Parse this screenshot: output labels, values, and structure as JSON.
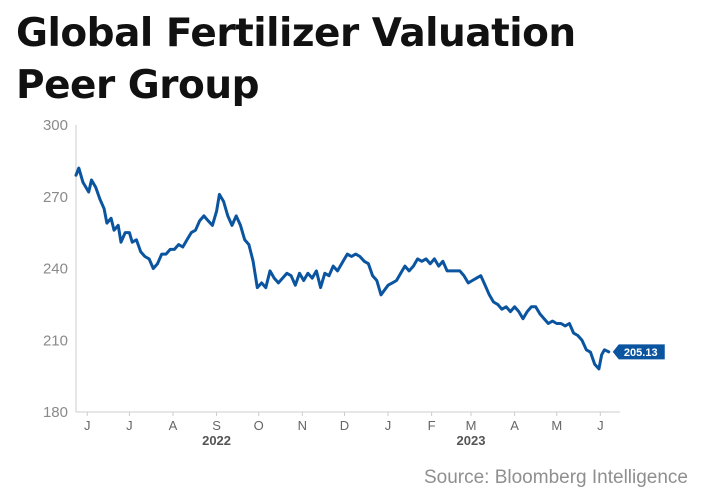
{
  "title_line1": "Global Fertilizer Valuation",
  "title_line2": "Peer Group",
  "source": "Source: Bloomberg Intelligence",
  "colors": {
    "line": "#0b55a0",
    "axis": "#cccccc",
    "label_bg": "#0b55a0",
    "label_text": "#ffffff"
  },
  "chart_data": {
    "type": "line",
    "title": "Global Fertilizer Valuation Peer Group",
    "xlabel": "",
    "ylabel": "",
    "ylim": [
      180,
      300
    ],
    "yticks": [
      180,
      210,
      240,
      270,
      300
    ],
    "grid": false,
    "legend": "none",
    "x_tick_labels": [
      {
        "label": "J",
        "date": "2022-06-01"
      },
      {
        "label": "J",
        "date": "2022-07-01"
      },
      {
        "label": "A",
        "date": "2022-08-01"
      },
      {
        "label": "S",
        "date": "2022-09-01"
      },
      {
        "label": "O",
        "date": "2022-10-01"
      },
      {
        "label": "N",
        "date": "2022-11-01"
      },
      {
        "label": "D",
        "date": "2022-12-01"
      },
      {
        "label": "J",
        "date": "2023-01-01"
      },
      {
        "label": "F",
        "date": "2023-02-01"
      },
      {
        "label": "M",
        "date": "2023-03-01"
      },
      {
        "label": "A",
        "date": "2023-04-01"
      },
      {
        "label": "M",
        "date": "2023-05-01"
      },
      {
        "label": "J",
        "date": "2023-06-01"
      }
    ],
    "year_labels": [
      {
        "label": "2022",
        "date": "2022-09-01"
      },
      {
        "label": "2023",
        "date": "2023-03-01"
      }
    ],
    "last_value_label": "205.13",
    "series": [
      {
        "values": [
          [
            "2022-05-24",
            279
          ],
          [
            "2022-05-26",
            282
          ],
          [
            "2022-05-29",
            276
          ],
          [
            "2022-06-02",
            272
          ],
          [
            "2022-06-04",
            277
          ],
          [
            "2022-06-07",
            274
          ],
          [
            "2022-06-10",
            269
          ],
          [
            "2022-06-13",
            265
          ],
          [
            "2022-06-15",
            259
          ],
          [
            "2022-06-18",
            261
          ],
          [
            "2022-06-20",
            256
          ],
          [
            "2022-06-23",
            258
          ],
          [
            "2022-06-25",
            251
          ],
          [
            "2022-06-28",
            255
          ],
          [
            "2022-07-01",
            255
          ],
          [
            "2022-07-03",
            251
          ],
          [
            "2022-07-06",
            252
          ],
          [
            "2022-07-09",
            247
          ],
          [
            "2022-07-12",
            245
          ],
          [
            "2022-07-15",
            244
          ],
          [
            "2022-07-18",
            240
          ],
          [
            "2022-07-21",
            242
          ],
          [
            "2022-07-24",
            246
          ],
          [
            "2022-07-27",
            246
          ],
          [
            "2022-07-30",
            248
          ],
          [
            "2022-08-02",
            248
          ],
          [
            "2022-08-05",
            250
          ],
          [
            "2022-08-08",
            249
          ],
          [
            "2022-08-11",
            252
          ],
          [
            "2022-08-14",
            255
          ],
          [
            "2022-08-17",
            256
          ],
          [
            "2022-08-20",
            260
          ],
          [
            "2022-08-23",
            262
          ],
          [
            "2022-08-26",
            260
          ],
          [
            "2022-08-29",
            258
          ],
          [
            "2022-09-01",
            264
          ],
          [
            "2022-09-03",
            271
          ],
          [
            "2022-09-06",
            268
          ],
          [
            "2022-09-09",
            262
          ],
          [
            "2022-09-12",
            258
          ],
          [
            "2022-09-15",
            262
          ],
          [
            "2022-09-18",
            258
          ],
          [
            "2022-09-21",
            252
          ],
          [
            "2022-09-24",
            250
          ],
          [
            "2022-09-27",
            243
          ],
          [
            "2022-09-30",
            232
          ],
          [
            "2022-10-03",
            234
          ],
          [
            "2022-10-06",
            232
          ],
          [
            "2022-10-09",
            239
          ],
          [
            "2022-10-12",
            236
          ],
          [
            "2022-10-15",
            234
          ],
          [
            "2022-10-18",
            236
          ],
          [
            "2022-10-21",
            238
          ],
          [
            "2022-10-24",
            237
          ],
          [
            "2022-10-27",
            233
          ],
          [
            "2022-10-30",
            238
          ],
          [
            "2022-11-02",
            235
          ],
          [
            "2022-11-05",
            238
          ],
          [
            "2022-11-08",
            236
          ],
          [
            "2022-11-11",
            239
          ],
          [
            "2022-11-14",
            232
          ],
          [
            "2022-11-17",
            238
          ],
          [
            "2022-11-20",
            237
          ],
          [
            "2022-11-23",
            241
          ],
          [
            "2022-11-26",
            239
          ],
          [
            "2022-11-30",
            243
          ],
          [
            "2022-12-03",
            246
          ],
          [
            "2022-12-06",
            245
          ],
          [
            "2022-12-09",
            246
          ],
          [
            "2022-12-12",
            245
          ],
          [
            "2022-12-15",
            243
          ],
          [
            "2022-12-18",
            242
          ],
          [
            "2022-12-21",
            237
          ],
          [
            "2022-12-24",
            235
          ],
          [
            "2022-12-27",
            229
          ],
          [
            "2023-01-01",
            233
          ],
          [
            "2023-01-04",
            234
          ],
          [
            "2023-01-07",
            235
          ],
          [
            "2023-01-10",
            238
          ],
          [
            "2023-01-13",
            241
          ],
          [
            "2023-01-16",
            239
          ],
          [
            "2023-01-19",
            241
          ],
          [
            "2023-01-22",
            244
          ],
          [
            "2023-01-25",
            243
          ],
          [
            "2023-01-28",
            244
          ],
          [
            "2023-01-31",
            242
          ],
          [
            "2023-02-03",
            244
          ],
          [
            "2023-02-06",
            241
          ],
          [
            "2023-02-09",
            243
          ],
          [
            "2023-02-12",
            239
          ],
          [
            "2023-02-15",
            239
          ],
          [
            "2023-02-18",
            239
          ],
          [
            "2023-02-21",
            239
          ],
          [
            "2023-02-24",
            237
          ],
          [
            "2023-02-27",
            234
          ],
          [
            "2023-03-02",
            235
          ],
          [
            "2023-03-05",
            236
          ],
          [
            "2023-03-08",
            237
          ],
          [
            "2023-03-11",
            233
          ],
          [
            "2023-03-14",
            229
          ],
          [
            "2023-03-17",
            226
          ],
          [
            "2023-03-20",
            225
          ],
          [
            "2023-03-23",
            223
          ],
          [
            "2023-03-26",
            224
          ],
          [
            "2023-03-29",
            222
          ],
          [
            "2023-04-01",
            224
          ],
          [
            "2023-04-04",
            222
          ],
          [
            "2023-04-07",
            219
          ],
          [
            "2023-04-10",
            222
          ],
          [
            "2023-04-13",
            224
          ],
          [
            "2023-04-16",
            224
          ],
          [
            "2023-04-19",
            221
          ],
          [
            "2023-04-22",
            219
          ],
          [
            "2023-04-25",
            217
          ],
          [
            "2023-04-28",
            218
          ],
          [
            "2023-05-01",
            217
          ],
          [
            "2023-05-04",
            217
          ],
          [
            "2023-05-07",
            216
          ],
          [
            "2023-05-10",
            217
          ],
          [
            "2023-05-13",
            213
          ],
          [
            "2023-05-16",
            212
          ],
          [
            "2023-05-19",
            210
          ],
          [
            "2023-05-22",
            206
          ],
          [
            "2023-05-25",
            205
          ],
          [
            "2023-05-28",
            200
          ],
          [
            "2023-05-31",
            198
          ],
          [
            "2023-06-02",
            204
          ],
          [
            "2023-06-04",
            206
          ],
          [
            "2023-06-07",
            205.13
          ]
        ]
      }
    ]
  }
}
